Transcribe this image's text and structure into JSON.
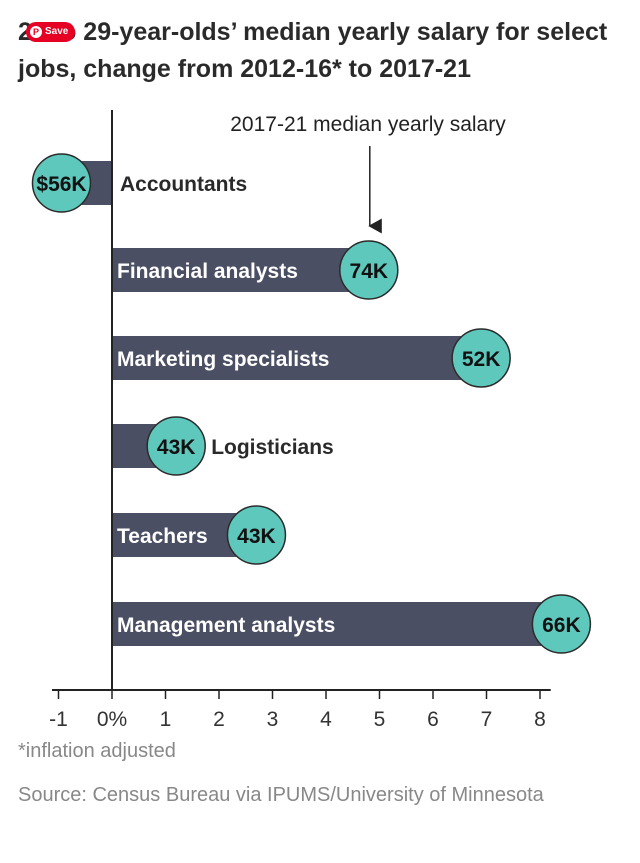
{
  "pin_button": {
    "label": "Save",
    "icon": "pinterest-icon"
  },
  "title": "25 to 29-year-olds’ median yearly salary for select jobs, change from 2012-16* to 2017-21",
  "annotation": "2017-21 median yearly salary",
  "footnote": "*inflation adjusted",
  "source": "Source: Census Bureau via IPUMS/University of Minnesota",
  "colors": {
    "bar": "#4b4f64",
    "bubble": "#5ec8bd",
    "bubble_border": "#2b2b2b",
    "axis": "#222222"
  },
  "chart_data": {
    "type": "bar",
    "orientation": "horizontal",
    "title": "25 to 29-year-olds’ median yearly salary for select jobs, change from 2012-16* to 2017-21",
    "categories": [
      "Accountants",
      "Financial analysts",
      "Marketing specialists",
      "Logisticians",
      "Teachers",
      "Management analysts"
    ],
    "values": [
      -1.0,
      4.8,
      6.9,
      1.2,
      2.7,
      8.4
    ],
    "salary_labels": [
      "$56K",
      "74K",
      "52K",
      "43K",
      "43K",
      "66K"
    ],
    "x_ticks": [
      "-1",
      "0%",
      "1",
      "2",
      "3",
      "4",
      "5",
      "6",
      "7",
      "8"
    ],
    "x_tick_values": [
      -1,
      0,
      1,
      2,
      3,
      4,
      5,
      6,
      7,
      8
    ],
    "xlim": [
      -1.1,
      8.2
    ],
    "grid": false
  }
}
